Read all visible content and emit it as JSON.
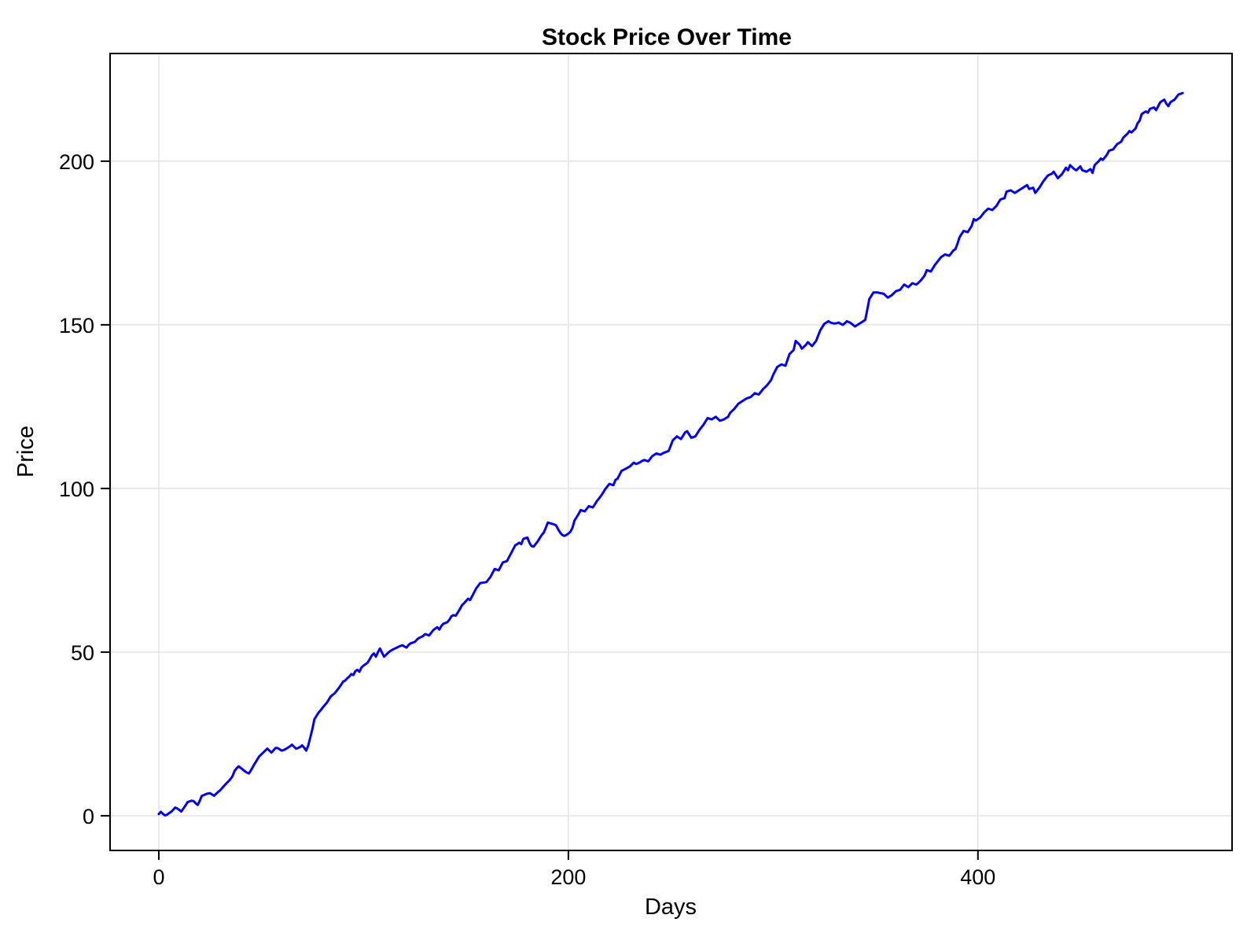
{
  "page": {
    "background": "#ffffff"
  },
  "chart_data": {
    "type": "line",
    "title": "Stock Price Over Time",
    "xlabel": "Days",
    "ylabel": "Price",
    "grid": true,
    "legend": "none",
    "line_color": "#0000ee",
    "line_width": 3,
    "grid_color": "#e2e2e2",
    "frame_color": "#000000",
    "xlim": [
      -23.8,
      524.1
    ],
    "ylim": [
      -10.6,
      232.9
    ],
    "x_ticks": [
      0,
      200,
      400
    ],
    "y_ticks": [
      0,
      50,
      100,
      150,
      200
    ],
    "series": [
      {
        "name": "price",
        "x0": 0,
        "dx": 1,
        "n": 501,
        "y": [
          0.5,
          1.2,
          0.6,
          0.1,
          0.3,
          0.8,
          1.2,
          1.8,
          2.5,
          2.2,
          1.8,
          1.3,
          2.2,
          3.1,
          4.1,
          4.4,
          4.6,
          4.5,
          3.8,
          3.3,
          4.6,
          6.1,
          6.3,
          6.6,
          6.8,
          6.9,
          6.5,
          6.1,
          6.7,
          7.3,
          7.8,
          8.5,
          9.2,
          9.9,
          10.5,
          11.2,
          12.1,
          13.7,
          14.5,
          15.1,
          14.6,
          14.1,
          13.6,
          13.2,
          12.9,
          13.9,
          15.0,
          16.1,
          17.1,
          18.1,
          18.7,
          19.3,
          19.9,
          20.5,
          19.9,
          19.3,
          20.0,
          20.7,
          20.7,
          20.3,
          19.9,
          20.1,
          20.4,
          20.8,
          21.2,
          21.7,
          21.1,
          20.5,
          20.7,
          21.0,
          21.5,
          20.8,
          19.9,
          21.5,
          24.0,
          26.5,
          29.5,
          30.5,
          31.5,
          32.2,
          33.0,
          33.8,
          34.5,
          35.5,
          36.5,
          37.0,
          37.5,
          38.3,
          39.1,
          40.0,
          41.0,
          41.3,
          42.0,
          42.5,
          43.3,
          43.0,
          44.2,
          44.6,
          44.0,
          45.3,
          45.9,
          46.3,
          46.8,
          47.8,
          49.0,
          49.6,
          48.6,
          50.0,
          51.1,
          49.8,
          48.6,
          49.2,
          49.8,
          50.3,
          50.7,
          51.0,
          51.3,
          51.6,
          51.9,
          52.1,
          51.7,
          51.4,
          52.2,
          52.7,
          52.9,
          53.1,
          53.8,
          54.3,
          54.6,
          54.9,
          55.5,
          55.3,
          55.1,
          55.9,
          56.7,
          57.2,
          57.6,
          56.9,
          58.0,
          58.7,
          58.9,
          59.2,
          60.0,
          61.0,
          61.3,
          61.1,
          62.1,
          63.1,
          64.3,
          64.9,
          65.6,
          66.3,
          65.9,
          67.1,
          68.3,
          69.5,
          70.3,
          71.1,
          71.2,
          71.3,
          71.4,
          72.2,
          73.0,
          74.2,
          75.4,
          75.2,
          75.0,
          76.2,
          77.4,
          77.6,
          77.8,
          79.0,
          80.2,
          81.4,
          82.6,
          83.0,
          83.4,
          83.0,
          84.6,
          84.8,
          85.0,
          83.4,
          82.4,
          82.2,
          83.0,
          83.8,
          84.8,
          85.8,
          86.5,
          88.0,
          89.6,
          89.4,
          89.2,
          89.0,
          88.7,
          87.5,
          86.5,
          85.8,
          85.5,
          85.8,
          86.2,
          86.8,
          88.0,
          90.2,
          91.2,
          92.2,
          93.4,
          93.2,
          93.0,
          93.8,
          94.6,
          94.4,
          94.2,
          95.2,
          96.2,
          97.0,
          97.8,
          98.8,
          99.8,
          100.6,
          101.4,
          101.2,
          101.0,
          102.6,
          103.0,
          104.2,
          105.4,
          105.7,
          106.0,
          106.4,
          106.7,
          107.3,
          107.9,
          107.5,
          107.7,
          108.0,
          108.4,
          108.7,
          108.5,
          108.3,
          109.1,
          109.9,
          110.3,
          110.7,
          110.5,
          110.3,
          110.7,
          111.0,
          111.2,
          111.5,
          113.1,
          114.7,
          115.3,
          115.9,
          115.5,
          115.1,
          116.1,
          117.1,
          117.5,
          116.5,
          115.5,
          115.7,
          115.9,
          116.9,
          117.9,
          118.7,
          119.5,
          120.5,
          121.5,
          121.3,
          121.1,
          121.5,
          121.9,
          121.3,
          120.7,
          120.9,
          121.1,
          121.5,
          121.9,
          123.1,
          123.7,
          124.3,
          125.1,
          125.9,
          126.3,
          126.7,
          127.1,
          127.5,
          127.7,
          127.9,
          128.5,
          129.1,
          128.9,
          128.7,
          129.5,
          130.3,
          130.9,
          131.5,
          132.3,
          133.1,
          134.7,
          135.9,
          137.1,
          137.5,
          137.9,
          137.7,
          137.5,
          139.3,
          141.1,
          141.7,
          142.3,
          145.1,
          144.5,
          143.9,
          142.7,
          143.3,
          143.9,
          144.7,
          144.1,
          143.5,
          144.3,
          145.1,
          146.7,
          148.3,
          149.3,
          150.3,
          150.7,
          151.1,
          150.7,
          150.5,
          150.4,
          150.5,
          150.7,
          150.3,
          150.0,
          150.5,
          151.1,
          150.8,
          150.5,
          150.0,
          149.5,
          149.9,
          150.3,
          150.7,
          151.1,
          151.5,
          154.7,
          157.9,
          158.9,
          159.9,
          159.9,
          159.9,
          159.7,
          159.6,
          159.5,
          158.9,
          158.3,
          158.7,
          159.1,
          159.7,
          160.3,
          160.5,
          160.7,
          161.5,
          162.3,
          161.9,
          161.5,
          162.1,
          162.7,
          162.5,
          162.3,
          162.9,
          163.5,
          164.3,
          165.1,
          166.7,
          166.5,
          166.3,
          167.3,
          168.3,
          169.1,
          169.9,
          170.7,
          171.1,
          171.5,
          171.3,
          171.1,
          171.9,
          172.7,
          173.1,
          174.7,
          176.7,
          177.7,
          178.7,
          178.5,
          178.3,
          179.3,
          180.3,
          182.3,
          181.9,
          182.3,
          182.7,
          183.5,
          184.3,
          184.9,
          185.5,
          185.3,
          185.1,
          185.7,
          186.3,
          187.3,
          188.3,
          188.5,
          188.7,
          190.7,
          190.9,
          191.1,
          190.7,
          190.3,
          190.7,
          191.1,
          191.5,
          191.9,
          192.3,
          192.7,
          191.5,
          191.7,
          191.9,
          190.3,
          191.1,
          191.9,
          192.9,
          193.9,
          194.7,
          195.5,
          195.9,
          196.1,
          196.8,
          195.8,
          194.8,
          195.4,
          196.0,
          197.0,
          198.0,
          197.2,
          198.8,
          198.2,
          197.6,
          197.2,
          197.8,
          198.4,
          197.2,
          197.0,
          196.8,
          197.2,
          197.6,
          196.4,
          198.8,
          199.4,
          200.0,
          200.8,
          200.4,
          201.2,
          202.0,
          203.2,
          203.4,
          203.6,
          204.4,
          205.2,
          205.6,
          206.0,
          207.2,
          207.8,
          208.4,
          209.2,
          208.8,
          209.4,
          210.0,
          211.6,
          212.4,
          214.4,
          214.8,
          215.2,
          214.8,
          216.0,
          216.2,
          216.4,
          215.6,
          216.8,
          218.0,
          218.4,
          218.8,
          217.6,
          216.8,
          218.0,
          218.4,
          218.8,
          219.6,
          220.4,
          220.6,
          220.8
        ]
      }
    ]
  }
}
